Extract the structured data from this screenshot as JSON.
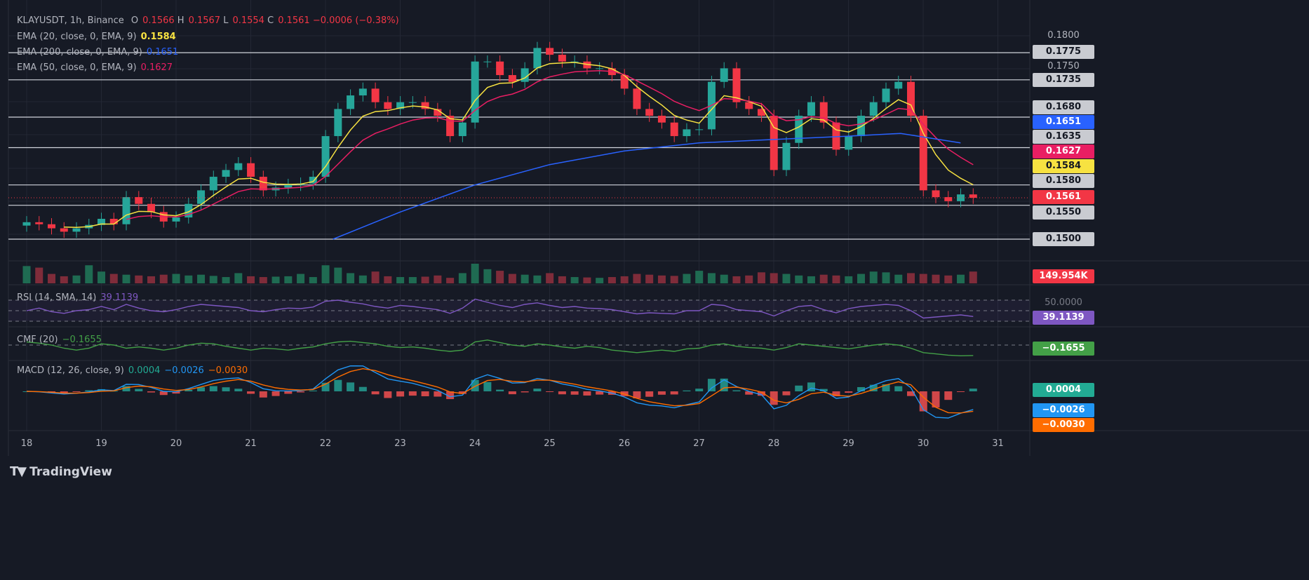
{
  "header": {
    "symbol": "KLAYUSDT, 1h, Binance",
    "open_label": "O",
    "open": "0.1566",
    "high_label": "H",
    "high": "0.1567",
    "low_label": "L",
    "low": "0.1554",
    "close_label": "C",
    "close": "0.1561",
    "change": "−0.0006 (−0.38%)"
  },
  "indicators": {
    "ema20": {
      "label": "EMA (20, close, 0, EMA, 9)",
      "value": "0.1584",
      "color": "#f7e241"
    },
    "ema200": {
      "label": "EMA (200, close, 0, EMA, 9)",
      "value": "0.1651",
      "color": "#2962ff"
    },
    "ema50": {
      "label": "EMA (50, close, 0, EMA, 9)",
      "value": "0.1627",
      "color": "#e91e63"
    },
    "rsi": {
      "label": "RSI (14, SMA, 14)",
      "value": "39.1139",
      "color": "#7e57c2",
      "hidden_axis_label": "50.0000"
    },
    "cmf": {
      "label": "CMF (20)",
      "value": "−0.1655",
      "color": "#43a047"
    },
    "macd": {
      "label": "MACD (12, 26, close, 9)",
      "hist": "0.0004",
      "macd": "−0.0026",
      "signal": "−0.0030",
      "hist_color": "#22ab94",
      "macd_color": "#2196f3",
      "signal_color": "#ff6d00"
    }
  },
  "price_axis": {
    "ticks": [
      "0.1800",
      "0.1750"
    ],
    "levels": [
      {
        "label": "0.1775",
        "value": 0.1775
      },
      {
        "label": "0.1735",
        "value": 0.1735
      },
      {
        "label": "0.1680",
        "value": 0.168
      },
      {
        "label": "0.1635",
        "value": 0.1635
      },
      {
        "label": "0.1580",
        "value": 0.158
      },
      {
        "label": "0.1550",
        "value": 0.155
      },
      {
        "label": "0.1500",
        "value": 0.15
      }
    ],
    "ema200_label": "0.1651",
    "ema50_label": "0.1627",
    "ema20_label": "0.1584",
    "last_price_label": "0.1561",
    "volume_label": "149.954K"
  },
  "rsi_axis_label": "39.1139",
  "cmf_axis_label": "−0.1655",
  "macd_axis": {
    "hist": "0.0004",
    "macd": "−0.0026",
    "signal": "−0.0030"
  },
  "time_axis": [
    "18",
    "19",
    "20",
    "21",
    "22",
    "23",
    "24",
    "25",
    "26",
    "27",
    "28",
    "29",
    "30",
    "31"
  ],
  "branding": "TradingView",
  "colors": {
    "up": "#26a69a",
    "down": "#f23645",
    "background": "#161a25"
  },
  "chart_data": {
    "type": "candlestick",
    "x_unit": "day",
    "x_start": 18,
    "x_step": 0.1667,
    "ylim": [
      0.1475,
      0.1825
    ],
    "close": [
      0.1525,
      0.1522,
      0.1516,
      0.1511,
      0.1516,
      0.1521,
      0.153,
      0.1522,
      0.1562,
      0.1552,
      0.154,
      0.1526,
      0.1532,
      0.1552,
      0.1572,
      0.1592,
      0.1602,
      0.1612,
      0.1592,
      0.1572,
      0.1576,
      0.158,
      0.1582,
      0.1592,
      0.1652,
      0.1692,
      0.1712,
      0.1722,
      0.1702,
      0.1692,
      0.1702,
      0.1702,
      0.1692,
      0.1682,
      0.1652,
      0.1672,
      0.1762,
      0.1762,
      0.1742,
      0.1732,
      0.1752,
      0.1782,
      0.1772,
      0.1762,
      0.1762,
      0.1752,
      0.1752,
      0.1742,
      0.1722,
      0.1692,
      0.1682,
      0.1672,
      0.1652,
      0.1662,
      0.1662,
      0.1732,
      0.1752,
      0.1702,
      0.1692,
      0.1682,
      0.1602,
      0.1642,
      0.1682,
      0.1702,
      0.1672,
      0.1632,
      0.1652,
      0.1682,
      0.1702,
      0.1722,
      0.1732,
      0.1682,
      0.1572,
      0.1562,
      0.1556,
      0.1566,
      0.1561
    ],
    "ema200_points": [
      [
        22.1,
        0.15
      ],
      [
        23,
        0.154
      ],
      [
        24,
        0.158
      ],
      [
        25,
        0.161
      ],
      [
        26,
        0.163
      ],
      [
        27,
        0.1642
      ],
      [
        28,
        0.1647
      ],
      [
        29,
        0.1652
      ],
      [
        29.7,
        0.1656
      ],
      [
        30.5,
        0.1642
      ]
    ],
    "volume_k": [
      220,
      200,
      120,
      90,
      100,
      230,
      150,
      120,
      110,
      100,
      90,
      110,
      120,
      100,
      110,
      95,
      80,
      130,
      90,
      80,
      85,
      90,
      120,
      80,
      230,
      200,
      130,
      100,
      150,
      90,
      80,
      80,
      85,
      100,
      70,
      130,
      250,
      180,
      160,
      120,
      110,
      100,
      130,
      90,
      80,
      75,
      70,
      80,
      90,
      120,
      110,
      100,
      95,
      120,
      160,
      130,
      110,
      90,
      100,
      140,
      130,
      120,
      100,
      90,
      110,
      100,
      90,
      120,
      150,
      140,
      110,
      130,
      120,
      110,
      100,
      110,
      150
    ],
    "rsi": [
      50,
      55,
      48,
      45,
      50,
      52,
      58,
      52,
      62,
      55,
      50,
      48,
      52,
      58,
      62,
      60,
      58,
      56,
      50,
      48,
      52,
      55,
      54,
      57,
      68,
      70,
      66,
      63,
      58,
      55,
      60,
      58,
      55,
      52,
      45,
      55,
      72,
      66,
      60,
      56,
      62,
      65,
      60,
      56,
      58,
      55,
      54,
      52,
      48,
      44,
      46,
      45,
      44,
      50,
      50,
      62,
      60,
      52,
      50,
      48,
      40,
      50,
      58,
      60,
      52,
      46,
      54,
      58,
      60,
      62,
      60,
      50,
      36,
      38,
      40,
      42,
      39
    ],
    "rsi_bands": [
      70,
      50,
      30
    ],
    "cmf": [
      0.05,
      0.03,
      0.0,
      -0.05,
      -0.08,
      -0.05,
      0.02,
      0.0,
      -0.05,
      -0.03,
      -0.05,
      -0.08,
      -0.05,
      0.0,
      0.03,
      0.02,
      -0.02,
      -0.05,
      -0.08,
      -0.05,
      -0.06,
      -0.08,
      -0.05,
      -0.03,
      0.02,
      0.05,
      0.06,
      0.04,
      0.02,
      -0.02,
      -0.04,
      -0.03,
      -0.05,
      -0.08,
      -0.1,
      -0.08,
      0.05,
      0.08,
      0.04,
      0.0,
      -0.02,
      0.02,
      0.0,
      -0.03,
      -0.05,
      -0.02,
      -0.04,
      -0.08,
      -0.1,
      -0.12,
      -0.1,
      -0.08,
      -0.1,
      -0.06,
      -0.05,
      0.0,
      0.02,
      -0.02,
      -0.04,
      -0.05,
      -0.08,
      -0.04,
      0.02,
      0.0,
      -0.02,
      -0.04,
      -0.06,
      -0.03,
      0.0,
      0.02,
      0.0,
      -0.05,
      -0.12,
      -0.14,
      -0.16,
      -0.17,
      -0.1655
    ],
    "cmf_zero": 0
  }
}
